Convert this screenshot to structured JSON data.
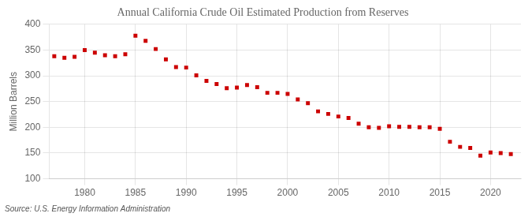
{
  "chart_data": {
    "type": "scatter",
    "title": "Annual California Crude Oil Estimated Production from Reserves",
    "ylabel": "Million Barrels",
    "source": "Source: U.S. Energy Information Administration",
    "color": "#cc0000",
    "marker": "square",
    "grid": true,
    "legend": false,
    "xlim": [
      1976.5,
      2023
    ],
    "ylim": [
      100,
      400
    ],
    "xticks": [
      1980,
      1985,
      1990,
      1995,
      2000,
      2005,
      2010,
      2015,
      2020
    ],
    "yticks": [
      100,
      150,
      200,
      250,
      300,
      350,
      400
    ],
    "x": [
      1977,
      1978,
      1979,
      1980,
      1981,
      1982,
      1983,
      1984,
      1985,
      1986,
      1987,
      1988,
      1989,
      1990,
      1991,
      1992,
      1993,
      1994,
      1995,
      1996,
      1997,
      1998,
      1999,
      2000,
      2001,
      2002,
      2003,
      2004,
      2005,
      2006,
      2007,
      2008,
      2009,
      2010,
      2011,
      2012,
      2013,
      2014,
      2015,
      2016,
      2017,
      2018,
      2019,
      2020,
      2021,
      2022
    ],
    "values": [
      338,
      335,
      337,
      350,
      345,
      340,
      338,
      342,
      378,
      368,
      352,
      332,
      317,
      316,
      301,
      290,
      284,
      276,
      277,
      282,
      278,
      267,
      267,
      265,
      254,
      247,
      231,
      226,
      221,
      218,
      207,
      200,
      199,
      202,
      201,
      201,
      200,
      200,
      197,
      172,
      162,
      160,
      145,
      151,
      150,
      148
    ]
  }
}
